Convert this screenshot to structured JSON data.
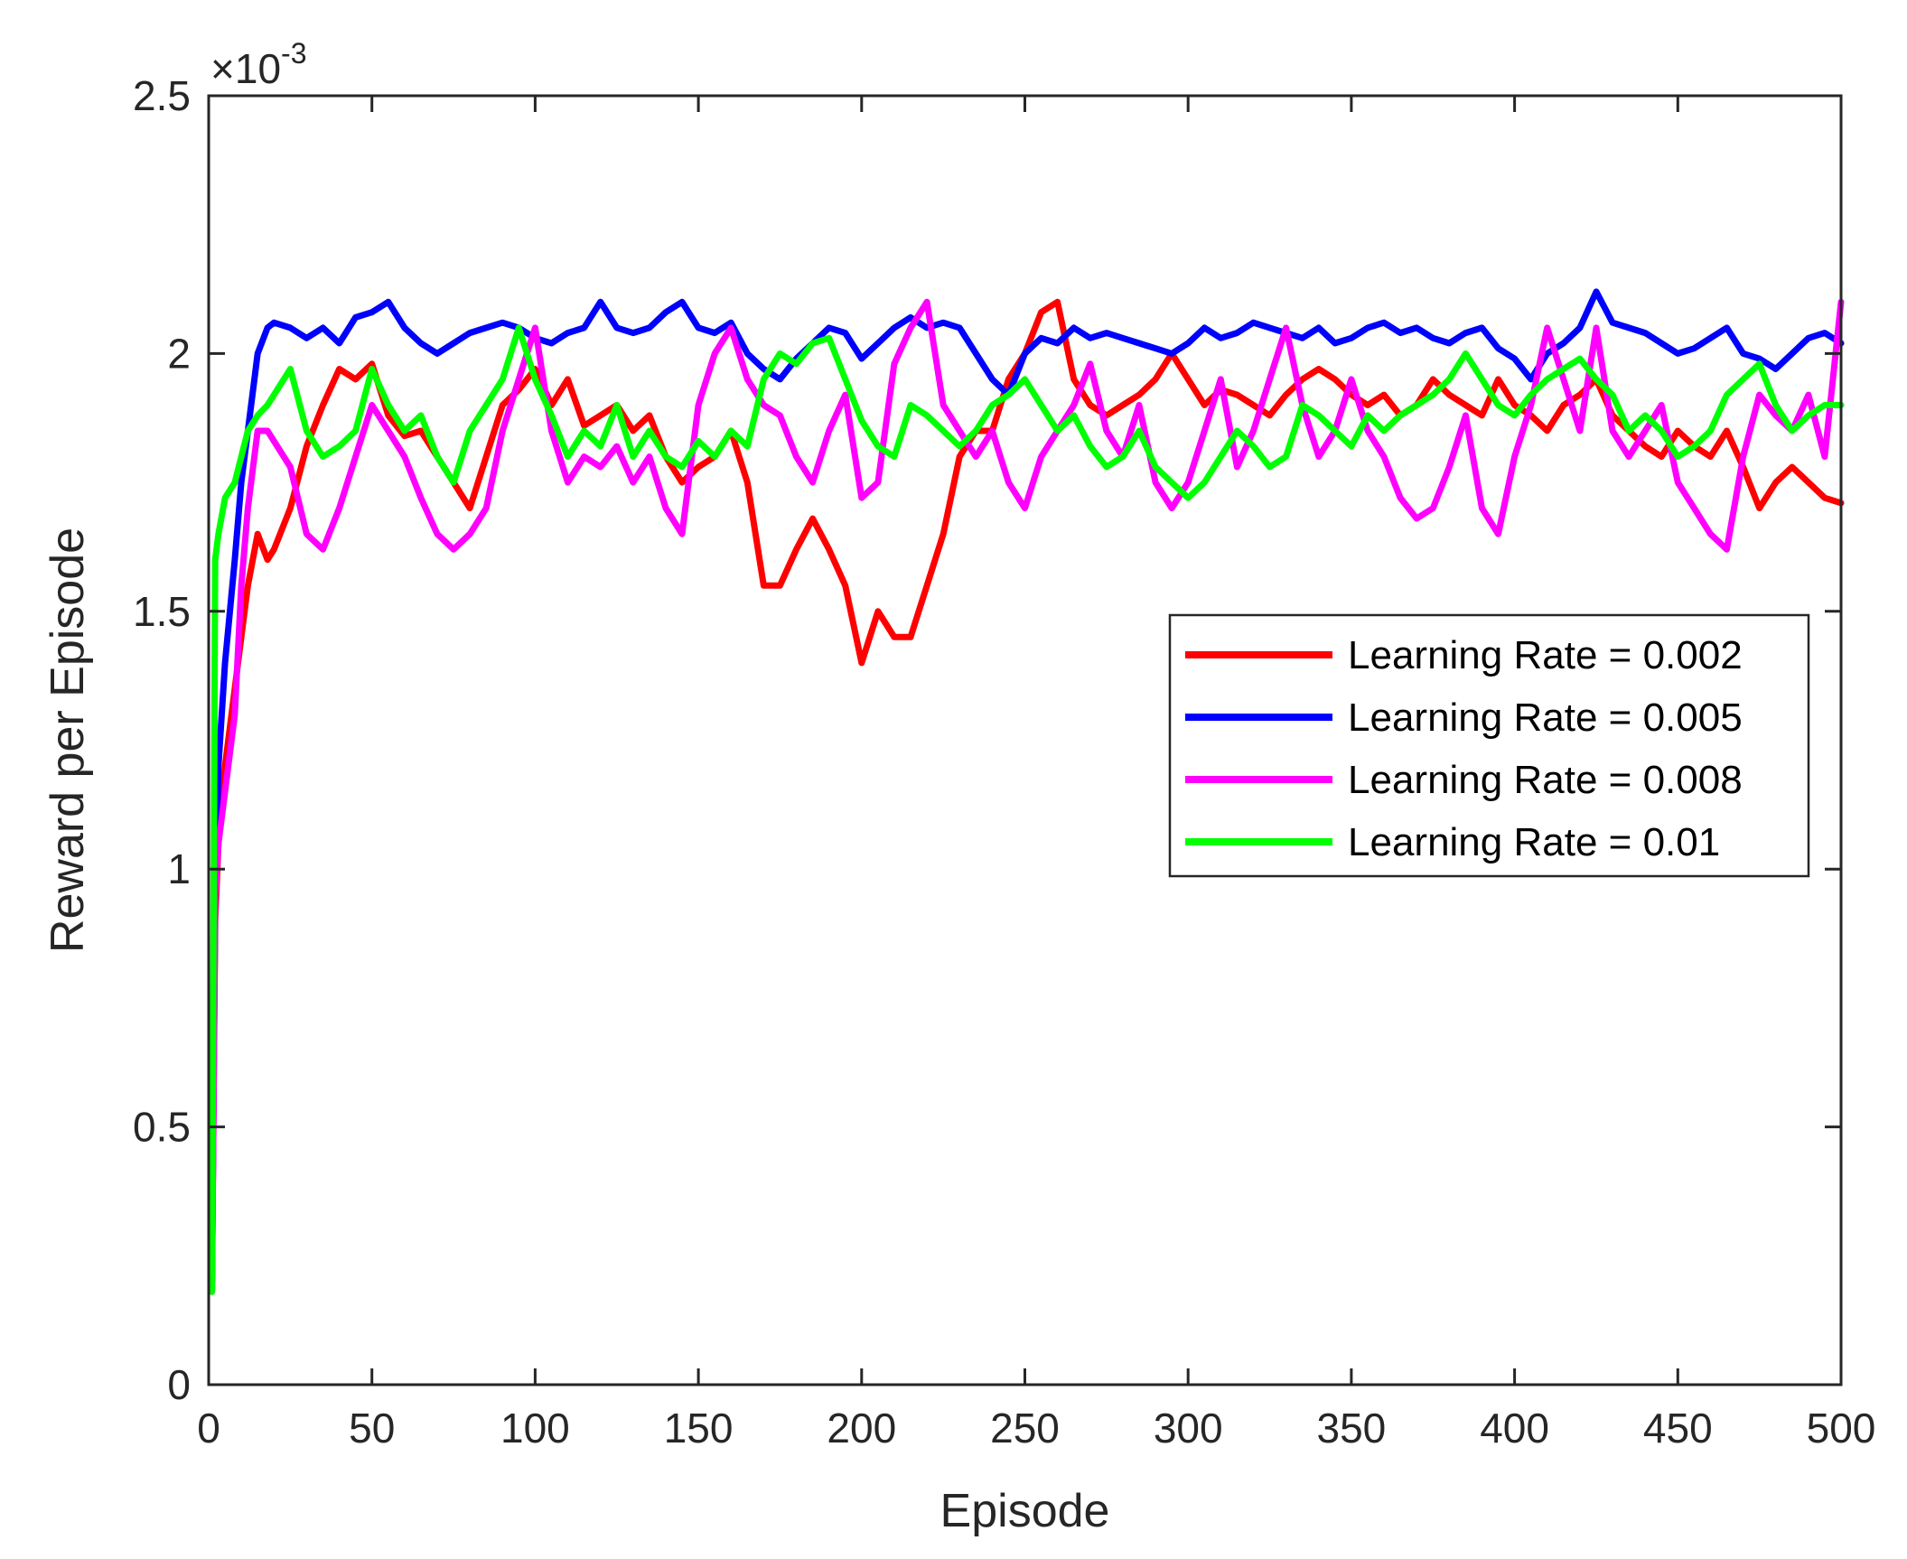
{
  "chart_data": {
    "type": "line",
    "xlabel": "Episode",
    "ylabel": "Reward per Episode",
    "y_exponent": "-3",
    "xlim": [
      0,
      500
    ],
    "ylim": [
      0,
      2.5
    ],
    "x_ticks": [
      0,
      50,
      100,
      150,
      200,
      250,
      300,
      350,
      400,
      450,
      500
    ],
    "y_ticks": [
      0,
      0.5,
      1,
      1.5,
      2,
      2.5
    ],
    "x_tick_labels": [
      "0",
      "50",
      "100",
      "150",
      "200",
      "250",
      "300",
      "350",
      "400",
      "450",
      "500"
    ],
    "y_tick_labels": [
      "0",
      "0.5",
      "1",
      "1.5",
      "2",
      "2.5"
    ],
    "grid": false,
    "legend_position": "center-right",
    "x": [
      1,
      2,
      3,
      5,
      8,
      10,
      12,
      15,
      18,
      20,
      25,
      30,
      35,
      40,
      45,
      50,
      55,
      60,
      65,
      70,
      75,
      80,
      85,
      90,
      95,
      100,
      105,
      110,
      115,
      120,
      125,
      130,
      135,
      140,
      145,
      150,
      155,
      160,
      165,
      170,
      175,
      180,
      185,
      190,
      195,
      200,
      205,
      210,
      215,
      220,
      225,
      230,
      235,
      240,
      245,
      250,
      255,
      260,
      265,
      270,
      275,
      280,
      285,
      290,
      295,
      300,
      305,
      310,
      315,
      320,
      325,
      330,
      335,
      340,
      345,
      350,
      355,
      360,
      365,
      370,
      375,
      380,
      385,
      390,
      395,
      400,
      405,
      410,
      415,
      420,
      425,
      430,
      435,
      440,
      445,
      450,
      455,
      460,
      465,
      470,
      475,
      480,
      485,
      490,
      495,
      500
    ],
    "series": [
      {
        "name": "Learning Rate = 0.002",
        "color": "#ff0000",
        "values": [
          0.2,
          0.9,
          1.05,
          1.2,
          1.35,
          1.45,
          1.55,
          1.65,
          1.6,
          1.62,
          1.7,
          1.82,
          1.9,
          1.97,
          1.95,
          1.98,
          1.88,
          1.84,
          1.85,
          1.8,
          1.75,
          1.7,
          1.8,
          1.9,
          1.93,
          1.97,
          1.9,
          1.95,
          1.86,
          1.88,
          1.9,
          1.85,
          1.88,
          1.8,
          1.75,
          1.78,
          1.8,
          1.85,
          1.75,
          1.55,
          1.55,
          1.62,
          1.68,
          1.62,
          1.55,
          1.4,
          1.5,
          1.45,
          1.45,
          1.55,
          1.65,
          1.8,
          1.85,
          1.85,
          1.95,
          2.0,
          2.08,
          2.1,
          1.95,
          1.9,
          1.88,
          1.9,
          1.92,
          1.95,
          2.0,
          1.95,
          1.9,
          1.93,
          1.92,
          1.9,
          1.88,
          1.92,
          1.95,
          1.97,
          1.95,
          1.92,
          1.9,
          1.92,
          1.88,
          1.9,
          1.95,
          1.92,
          1.9,
          1.88,
          1.95,
          1.9,
          1.88,
          1.85,
          1.9,
          1.92,
          1.95,
          1.88,
          1.85,
          1.82,
          1.8,
          1.85,
          1.82,
          1.8,
          1.85,
          1.78,
          1.7,
          1.75,
          1.78,
          1.75,
          1.72,
          1.71
        ]
      },
      {
        "name": "Learning Rate = 0.005",
        "color": "#0000ff",
        "values": [
          0.2,
          0.95,
          1.2,
          1.4,
          1.6,
          1.75,
          1.85,
          2.0,
          2.05,
          2.06,
          2.05,
          2.03,
          2.05,
          2.02,
          2.07,
          2.08,
          2.1,
          2.05,
          2.02,
          2.0,
          2.02,
          2.04,
          2.05,
          2.06,
          2.05,
          2.03,
          2.02,
          2.04,
          2.05,
          2.1,
          2.05,
          2.04,
          2.05,
          2.08,
          2.1,
          2.05,
          2.04,
          2.06,
          2.0,
          1.97,
          1.95,
          1.99,
          2.02,
          2.05,
          2.04,
          1.99,
          2.02,
          2.05,
          2.07,
          2.05,
          2.06,
          2.05,
          2.0,
          1.95,
          1.92,
          2.0,
          2.03,
          2.02,
          2.05,
          2.03,
          2.04,
          2.03,
          2.02,
          2.01,
          2.0,
          2.02,
          2.05,
          2.03,
          2.04,
          2.06,
          2.05,
          2.04,
          2.03,
          2.05,
          2.02,
          2.03,
          2.05,
          2.06,
          2.04,
          2.05,
          2.03,
          2.02,
          2.04,
          2.05,
          2.01,
          1.99,
          1.95,
          2.0,
          2.02,
          2.05,
          2.12,
          2.06,
          2.05,
          2.04,
          2.02,
          2.0,
          2.01,
          2.03,
          2.05,
          2.0,
          1.99,
          1.97,
          2.0,
          2.03,
          2.04,
          2.02
        ]
      },
      {
        "name": "Learning Rate = 0.008",
        "color": "#ff00ff",
        "values": [
          0.18,
          0.95,
          1.05,
          1.15,
          1.3,
          1.55,
          1.7,
          1.85,
          1.85,
          1.83,
          1.78,
          1.65,
          1.62,
          1.7,
          1.8,
          1.9,
          1.85,
          1.8,
          1.72,
          1.65,
          1.62,
          1.65,
          1.7,
          1.85,
          1.95,
          2.05,
          1.85,
          1.75,
          1.8,
          1.78,
          1.82,
          1.75,
          1.8,
          1.7,
          1.65,
          1.9,
          2.0,
          2.05,
          1.95,
          1.9,
          1.88,
          1.8,
          1.75,
          1.85,
          1.92,
          1.72,
          1.75,
          1.98,
          2.05,
          2.1,
          1.9,
          1.85,
          1.8,
          1.85,
          1.75,
          1.7,
          1.8,
          1.85,
          1.9,
          1.98,
          1.85,
          1.8,
          1.9,
          1.75,
          1.7,
          1.75,
          1.85,
          1.95,
          1.78,
          1.85,
          1.95,
          2.05,
          1.9,
          1.8,
          1.85,
          1.95,
          1.85,
          1.8,
          1.72,
          1.68,
          1.7,
          1.78,
          1.88,
          1.7,
          1.65,
          1.8,
          1.9,
          2.05,
          1.95,
          1.85,
          2.05,
          1.85,
          1.8,
          1.85,
          1.9,
          1.75,
          1.7,
          1.65,
          1.62,
          1.8,
          1.92,
          1.88,
          1.85,
          1.92,
          1.8,
          2.1
        ]
      },
      {
        "name": "Learning Rate = 0.01",
        "color": "#00ff00",
        "values": [
          0.18,
          1.6,
          1.65,
          1.72,
          1.75,
          1.8,
          1.85,
          1.88,
          1.9,
          1.92,
          1.97,
          1.85,
          1.8,
          1.82,
          1.85,
          1.97,
          1.9,
          1.85,
          1.88,
          1.8,
          1.75,
          1.85,
          1.9,
          1.95,
          2.05,
          1.95,
          1.88,
          1.8,
          1.85,
          1.82,
          1.9,
          1.8,
          1.85,
          1.8,
          1.78,
          1.83,
          1.8,
          1.85,
          1.82,
          1.95,
          2.0,
          1.98,
          2.02,
          2.03,
          1.95,
          1.87,
          1.82,
          1.8,
          1.9,
          1.88,
          1.85,
          1.82,
          1.85,
          1.9,
          1.92,
          1.95,
          1.9,
          1.85,
          1.88,
          1.82,
          1.78,
          1.8,
          1.85,
          1.78,
          1.75,
          1.72,
          1.75,
          1.8,
          1.85,
          1.82,
          1.78,
          1.8,
          1.9,
          1.88,
          1.85,
          1.82,
          1.88,
          1.85,
          1.88,
          1.9,
          1.92,
          1.95,
          2.0,
          1.95,
          1.9,
          1.88,
          1.92,
          1.95,
          1.97,
          1.99,
          1.95,
          1.92,
          1.85,
          1.88,
          1.85,
          1.8,
          1.82,
          1.85,
          1.92,
          1.95,
          1.98,
          1.9,
          1.85,
          1.88,
          1.9,
          1.9
        ]
      }
    ]
  }
}
